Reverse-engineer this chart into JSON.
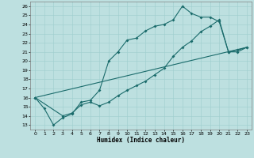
{
  "xlabel": "Humidex (Indice chaleur)",
  "ylabel": "",
  "xlim": [
    -0.5,
    23.5
  ],
  "ylim": [
    12.5,
    26.5
  ],
  "xticks": [
    0,
    1,
    2,
    3,
    4,
    5,
    6,
    7,
    8,
    9,
    10,
    11,
    12,
    13,
    14,
    15,
    16,
    17,
    18,
    19,
    20,
    21,
    22,
    23
  ],
  "yticks": [
    13,
    14,
    15,
    16,
    17,
    18,
    19,
    20,
    21,
    22,
    23,
    24,
    25,
    26
  ],
  "bg_color": "#bde0e0",
  "line_color": "#1a6b6b",
  "grid_color": "#9ecece",
  "line1_x": [
    0,
    1,
    2,
    3,
    4,
    5,
    6,
    7,
    8,
    9,
    10,
    11,
    12,
    13,
    14,
    15,
    16,
    17,
    18,
    19,
    20,
    21,
    22,
    23
  ],
  "line1_y": [
    16.0,
    14.8,
    13.0,
    13.8,
    14.2,
    15.5,
    15.7,
    16.8,
    20.0,
    21.0,
    22.3,
    22.5,
    23.3,
    23.8,
    24.0,
    24.5,
    26.0,
    25.2,
    24.8,
    24.8,
    24.3,
    21.0,
    21.2,
    21.5
  ],
  "line2_x": [
    0,
    3,
    4,
    5,
    6,
    7,
    8,
    9,
    10,
    11,
    12,
    13,
    14,
    15,
    16,
    17,
    18,
    19,
    20,
    21,
    22,
    23
  ],
  "line2_y": [
    16.0,
    14.0,
    14.3,
    15.2,
    15.5,
    15.1,
    15.5,
    16.2,
    16.8,
    17.3,
    17.8,
    18.5,
    19.2,
    20.5,
    21.5,
    22.2,
    23.2,
    23.8,
    24.5,
    21.0,
    21.0,
    21.5
  ],
  "line3_x": [
    0,
    23
  ],
  "line3_y": [
    16.0,
    21.5
  ]
}
